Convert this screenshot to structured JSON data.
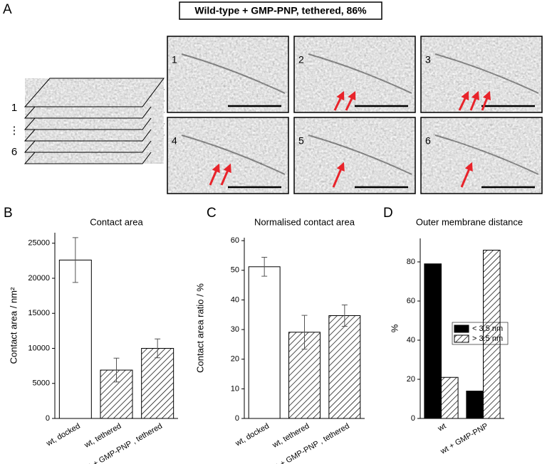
{
  "panel_a": {
    "panel": "A",
    "title": "Wild-type + GMP-PNP, tethered, 86%",
    "stack_labels": [
      "1",
      "⋮",
      "6"
    ],
    "image_labels": [
      "1",
      "2",
      "3",
      "4",
      "5",
      "6"
    ]
  },
  "chart_data": [
    {
      "type": "bar",
      "panel": "B",
      "title": "Contact area",
      "y_label": "Contact area / nm²",
      "categories": [
        "wt, docked",
        "wt, tethered",
        "wt + GMP-PNP , tethered"
      ],
      "values": [
        22600,
        6900,
        10000
      ],
      "errors": [
        3200,
        1700,
        1350
      ],
      "bar_styles": [
        "open",
        "hatched",
        "hatched"
      ],
      "color": "#000000",
      "ylim": [
        0,
        26500
      ],
      "yticks": [
        0,
        5000,
        10000,
        15000,
        20000,
        25000
      ]
    },
    {
      "type": "bar",
      "panel": "C",
      "title": "Normalised contact area",
      "y_label": "Contact area ratio / %",
      "categories": [
        "wt, docked",
        "wt, tethered",
        "wt + GMP-PNP , tethered"
      ],
      "values": [
        51.2,
        29.1,
        34.7
      ],
      "errors": [
        3.2,
        5.7,
        3.6
      ],
      "bar_styles": [
        "open",
        "hatched",
        "hatched"
      ],
      "color": "#000000",
      "ylim": [
        0,
        61
      ],
      "yticks": [
        0,
        10,
        20,
        30,
        40,
        50,
        60
      ]
    },
    {
      "type": "grouped_bar",
      "panel": "D",
      "title": "Outer membrane distance",
      "y_label": "%",
      "categories": [
        "wt",
        "wt + GMP-PNP"
      ],
      "series": [
        {
          "name": "< 3.5 nm",
          "color": "#000000",
          "style": "solid",
          "values": [
            79,
            14
          ]
        },
        {
          "name": "> 3.5 nm",
          "color": "#000000",
          "style": "hatched",
          "values": [
            21,
            86
          ]
        }
      ],
      "ylim": [
        0,
        92
      ],
      "yticks": [
        0,
        20,
        40,
        60,
        80
      ],
      "legend": "right"
    }
  ]
}
